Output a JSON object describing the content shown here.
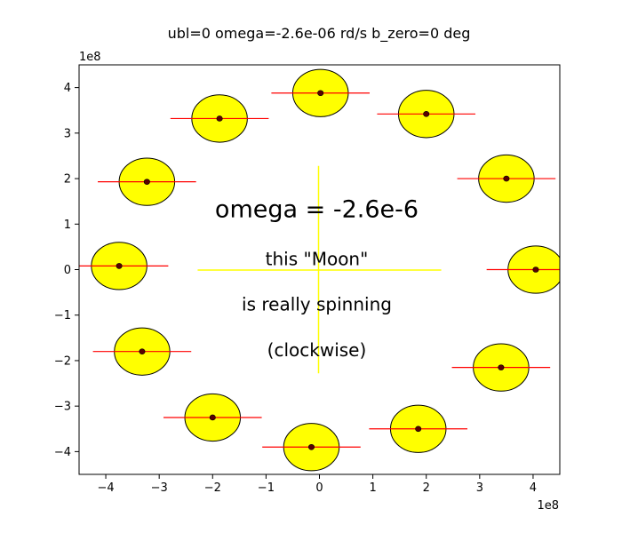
{
  "chart_data": {
    "type": "scatter",
    "title": "ubl=0      omega=-2.6e-06 rd/s      b_zero=0 deg",
    "xlabel": "",
    "ylabel": "",
    "x_offset_label": "1e8",
    "y_offset_label": "1e8",
    "xlim": [
      -4.5,
      4.5
    ],
    "ylim": [
      -4.5,
      4.5
    ],
    "xticks": [
      -4,
      -3,
      -2,
      -1,
      0,
      1,
      2,
      3,
      4
    ],
    "yticks": [
      -4,
      -3,
      -2,
      -1,
      0,
      1,
      2,
      3,
      4
    ],
    "xtick_labels": [
      "−4",
      "−3",
      "−2",
      "−1",
      "0",
      "1",
      "2",
      "3",
      "4"
    ],
    "ytick_labels": [
      "−4",
      "−3",
      "−2",
      "−1",
      "0",
      "1",
      "2",
      "3",
      "4"
    ],
    "grid": false,
    "moon_radius": 0.52,
    "moon_line_halfwidth": 0.92,
    "moon_fill": "#ffff00",
    "line_color": "#ff0000",
    "dot_color": "#5a0000",
    "cross_color": "#ffff00",
    "cross_halfwidth": 2.28,
    "cross_halfheight": 2.28,
    "points": [
      {
        "x": 0.02,
        "y": 3.88
      },
      {
        "x": 2.0,
        "y": 3.42
      },
      {
        "x": 3.5,
        "y": 2.0
      },
      {
        "x": 4.05,
        "y": 0.0
      },
      {
        "x": 3.4,
        "y": -2.15
      },
      {
        "x": 1.85,
        "y": -3.5
      },
      {
        "x": -0.15,
        "y": -3.9
      },
      {
        "x": -2.0,
        "y": -3.25
      },
      {
        "x": -3.32,
        "y": -1.8
      },
      {
        "x": -3.75,
        "y": 0.08
      },
      {
        "x": -3.23,
        "y": 1.93
      },
      {
        "x": -1.87,
        "y": 3.32
      }
    ],
    "annotations": {
      "headline": "omega = -2.6e-6",
      "line1": "this \"Moon\"",
      "line2": "is really spinning",
      "line3": "(clockwise)"
    },
    "annotation_positions": {
      "headline": {
        "x": -0.05,
        "y": 1.15
      },
      "line1": {
        "x": -0.05,
        "y": 0.1
      },
      "line2": {
        "x": -0.05,
        "y": -0.9
      },
      "line3": {
        "x": -0.05,
        "y": -1.9
      }
    }
  }
}
